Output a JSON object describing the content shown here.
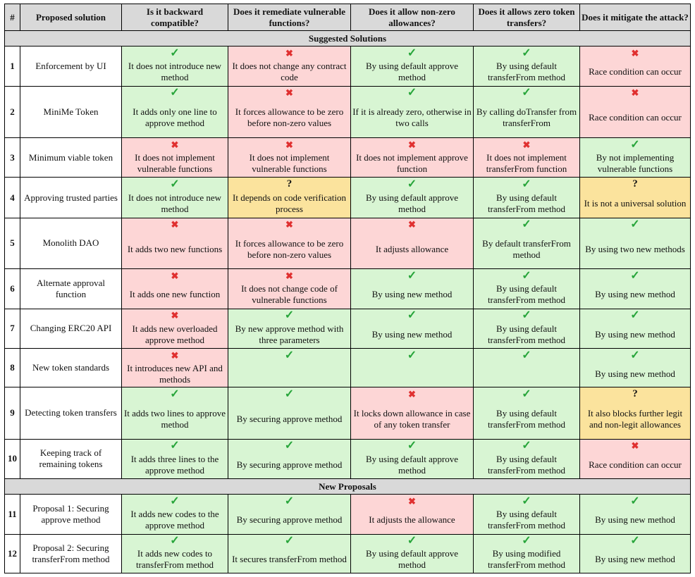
{
  "colors": {
    "yes": "#d8f5d3",
    "no": "#fdd6d6",
    "partial": "#fbe39d",
    "header": "#d9d9d9"
  },
  "icons": {
    "yes": "check-icon",
    "no": "cross-icon",
    "partial": "question-icon"
  },
  "headers": [
    "#",
    "Proposed solution",
    "Is it backward compatible?",
    "Does it remediate vulnerable functions?",
    "Does it allow non-zero allowances?",
    "Does it allows zero token transfers?",
    "Does it mitigate the attack?"
  ],
  "sections": {
    "suggested": "Suggested Solutions",
    "new": "New Proposals"
  },
  "rows": [
    {
      "num": "1",
      "name": "Enforcement by UI",
      "cells": [
        {
          "status": "yes",
          "icon": "✓",
          "text": "It does not introduce new method"
        },
        {
          "status": "no",
          "icon": "✖",
          "text": "It does not change any contract code"
        },
        {
          "status": "yes",
          "icon": "✓",
          "text": "By using default approve method"
        },
        {
          "status": "yes",
          "icon": "✓",
          "text": "By using default transferFrom method"
        },
        {
          "status": "no",
          "icon": "✖",
          "text": "Race condition can occur"
        }
      ]
    },
    {
      "num": "2",
      "name": "MiniMe Token",
      "cells": [
        {
          "status": "yes",
          "icon": "✓",
          "text": "It adds only one line to approve method"
        },
        {
          "status": "no",
          "icon": "✖",
          "text": "It forces allowance to be zero before non-zero values"
        },
        {
          "status": "yes",
          "icon": "✓",
          "text": "If it is already zero, otherwise in two calls"
        },
        {
          "status": "yes",
          "icon": "✓",
          "text": "By calling doTransfer from transferFrom"
        },
        {
          "status": "no",
          "icon": "✖",
          "text": "Race condition can occur"
        }
      ]
    },
    {
      "num": "3",
      "name": "Minimum viable token",
      "cells": [
        {
          "status": "no",
          "icon": "✖",
          "text": "It does not implement vulnerable functions"
        },
        {
          "status": "no",
          "icon": "✖",
          "text": "It does not implement vulnerable functions"
        },
        {
          "status": "no",
          "icon": "✖",
          "text": "It does not implement approve function"
        },
        {
          "status": "no",
          "icon": "✖",
          "text": "It does not implement transferFrom function"
        },
        {
          "status": "yes",
          "icon": "✓",
          "text": "By not implementing vulnerable functions"
        }
      ]
    },
    {
      "num": "4",
      "name": "Approving trusted parties",
      "cells": [
        {
          "status": "yes",
          "icon": "✓",
          "text": "It does not introduce new method"
        },
        {
          "status": "partial",
          "icon": "?",
          "text": "It depends on code verification process"
        },
        {
          "status": "yes",
          "icon": "✓",
          "text": "By using default approve method"
        },
        {
          "status": "yes",
          "icon": "✓",
          "text": "By using default transferFrom method"
        },
        {
          "status": "partial",
          "icon": "?",
          "text": "It is not a universal solution"
        }
      ]
    },
    {
      "num": "5",
      "name": "Monolith DAO",
      "cells": [
        {
          "status": "no",
          "icon": "✖",
          "text": "It adds two new functions"
        },
        {
          "status": "no",
          "icon": "✖",
          "text": "It forces allowance to be zero before non-zero values"
        },
        {
          "status": "no",
          "icon": "✖",
          "text": "It adjusts allowance"
        },
        {
          "status": "yes",
          "icon": "✓",
          "text": "By default transferFrom method"
        },
        {
          "status": "yes",
          "icon": "✓",
          "text": "By using two new methods"
        }
      ]
    },
    {
      "num": "6",
      "name": "Alternate approval function",
      "cells": [
        {
          "status": "no",
          "icon": "✖",
          "text": "It adds one new function"
        },
        {
          "status": "no",
          "icon": "✖",
          "text": "It does not change code of vulnerable functions"
        },
        {
          "status": "yes",
          "icon": "✓",
          "text": "By using new method"
        },
        {
          "status": "yes",
          "icon": "✓",
          "text": "By using default transferFrom method"
        },
        {
          "status": "yes",
          "icon": "✓",
          "text": "By using new method"
        }
      ]
    },
    {
      "num": "7",
      "name": "Changing ERC20 API",
      "cells": [
        {
          "status": "no",
          "icon": "✖",
          "text": "It adds new overloaded approve method"
        },
        {
          "status": "yes",
          "icon": "✓",
          "text": "By new approve method with three parameters"
        },
        {
          "status": "yes",
          "icon": "✓",
          "text": "By using new method"
        },
        {
          "status": "yes",
          "icon": "✓",
          "text": "By using default transferFrom method"
        },
        {
          "status": "yes",
          "icon": "✓",
          "text": "By using new method"
        }
      ]
    },
    {
      "num": "8",
      "name": "New token standards",
      "cells": [
        {
          "status": "no",
          "icon": "✖",
          "text": "It introduces new API and methods"
        },
        {
          "status": "yes",
          "icon": "✓",
          "text": ""
        },
        {
          "status": "yes",
          "icon": "✓",
          "text": ""
        },
        {
          "status": "yes",
          "icon": "✓",
          "text": ""
        },
        {
          "status": "yes",
          "icon": "✓",
          "text": "By using new method"
        }
      ]
    },
    {
      "num": "9",
      "name": "Detecting token transfers",
      "cells": [
        {
          "status": "yes",
          "icon": "✓",
          "text": "It adds two lines to approve method"
        },
        {
          "status": "yes",
          "icon": "✓",
          "text": "By securing approve method"
        },
        {
          "status": "no",
          "icon": "✖",
          "text": "It locks down allowance in case of any token transfer"
        },
        {
          "status": "yes",
          "icon": "✓",
          "text": "By using default transferFrom method"
        },
        {
          "status": "partial",
          "icon": "?",
          "text": "It also blocks further legit and non-legit allowances"
        }
      ]
    },
    {
      "num": "10",
      "name": "Keeping track of remaining tokens",
      "cells": [
        {
          "status": "yes",
          "icon": "✓",
          "text": "It adds three lines to the approve method"
        },
        {
          "status": "yes",
          "icon": "✓",
          "text": "By securing approve method"
        },
        {
          "status": "yes",
          "icon": "✓",
          "text": "By using default approve method"
        },
        {
          "status": "yes",
          "icon": "✓",
          "text": "By using default transferFrom method"
        },
        {
          "status": "no",
          "icon": "✖",
          "text": "Race condition can occur"
        }
      ]
    },
    {
      "num": "11",
      "name": "Proposal 1: Securing approve method",
      "cells": [
        {
          "status": "yes",
          "icon": "✓",
          "text": "It adds new codes to the approve method"
        },
        {
          "status": "yes",
          "icon": "✓",
          "text": "By securing approve method"
        },
        {
          "status": "no",
          "icon": "✖",
          "text": "It adjusts the allowance"
        },
        {
          "status": "yes",
          "icon": "✓",
          "text": "By using default transferFrom method"
        },
        {
          "status": "yes",
          "icon": "✓",
          "text": "By using new method"
        }
      ]
    },
    {
      "num": "12",
      "name": "Proposal 2: Securing transferFrom method",
      "cells": [
        {
          "status": "yes",
          "icon": "✓",
          "text": "It adds new codes to transferFrom method"
        },
        {
          "status": "yes",
          "icon": "✓",
          "text": "It secures transferFrom method"
        },
        {
          "status": "yes",
          "icon": "✓",
          "text": "By using default approve method"
        },
        {
          "status": "yes",
          "icon": "✓",
          "text": "By using modified transferFrom method"
        },
        {
          "status": "yes",
          "icon": "✓",
          "text": "By using new method"
        }
      ]
    }
  ]
}
